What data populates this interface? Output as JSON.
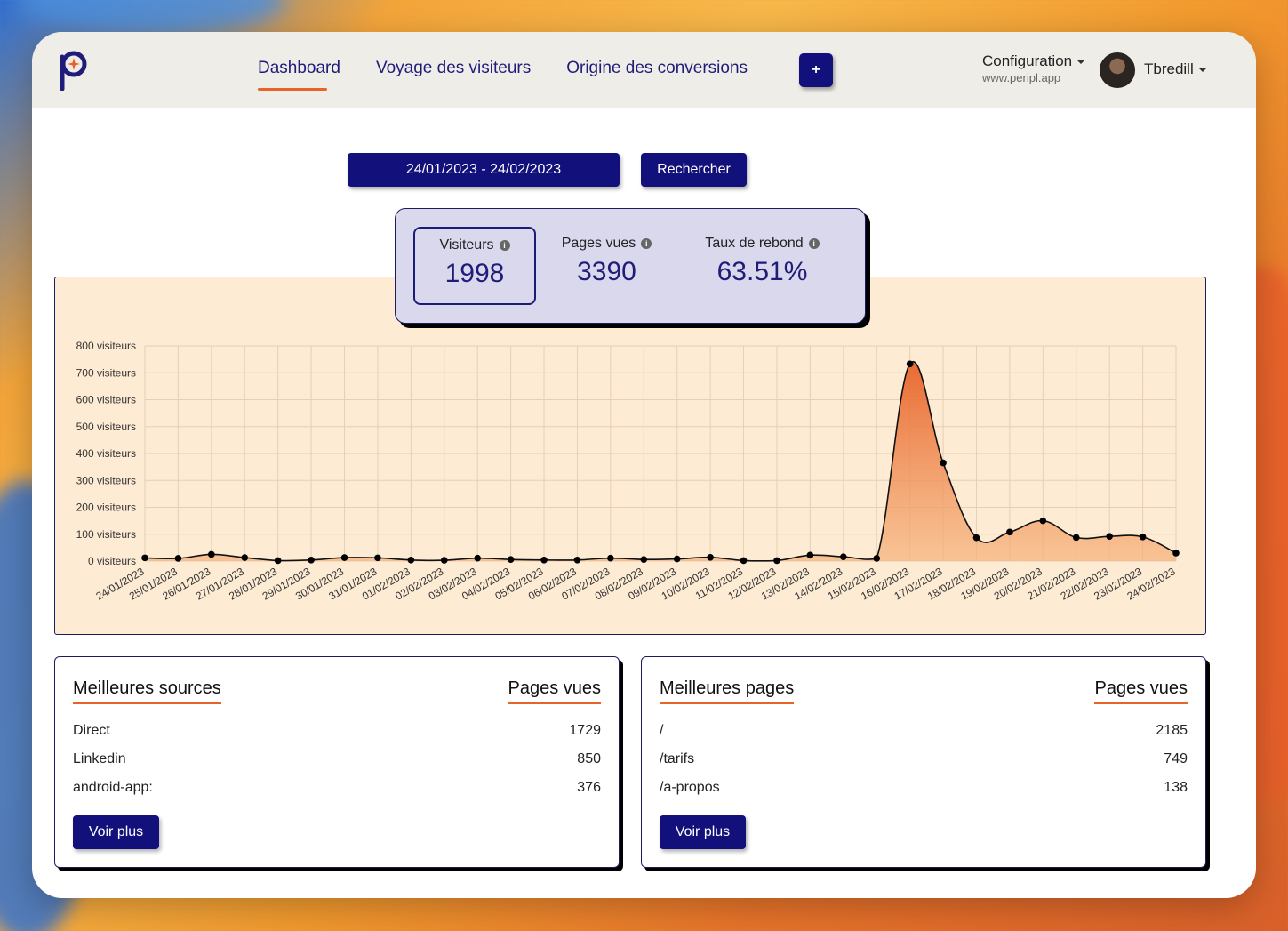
{
  "colors": {
    "primary": "#12107a",
    "accent": "#e8632a",
    "chart_bg": "#fdebd4",
    "stats_bg": "#d9d8ec"
  },
  "header": {
    "logo_icon": "periplus-logo-icon",
    "nav": [
      {
        "label": "Dashboard",
        "active": true
      },
      {
        "label": "Voyage des visiteurs",
        "active": false
      },
      {
        "label": "Origine des conversions",
        "active": false
      }
    ],
    "add_label": "+",
    "config_title": "Configuration",
    "config_site": "www.peripl.app",
    "user_name": "Tbredill"
  },
  "filters": {
    "date_range": "24/01/2023 - 24/02/2023",
    "search_label": "Rechercher"
  },
  "stats": {
    "visitors_label": "Visiteurs",
    "visitors_value": "1998",
    "pageviews_label": "Pages vues",
    "pageviews_value": "3390",
    "bounce_label": "Taux de rebond",
    "bounce_value": "63.51%"
  },
  "chart_data": {
    "type": "area",
    "y_unit_suffix": " visiteurs",
    "ylim": [
      0,
      800
    ],
    "yticks": [
      0,
      100,
      200,
      300,
      400,
      500,
      600,
      700,
      800
    ],
    "grid": true,
    "series": [
      {
        "x": [
          "24/01/2023",
          "25/01/2023",
          "26/01/2023",
          "27/01/2023",
          "28/01/2023",
          "29/01/2023",
          "30/01/2023",
          "31/01/2023",
          "01/02/2023",
          "02/02/2023",
          "03/02/2023",
          "04/02/2023",
          "05/02/2023",
          "06/02/2023",
          "07/02/2023",
          "08/02/2023",
          "09/02/2023",
          "10/02/2023",
          "11/02/2023",
          "12/02/2023",
          "13/02/2023",
          "14/02/2023",
          "15/02/2023",
          "16/02/2023",
          "17/02/2023",
          "18/02/2023",
          "19/02/2023",
          "20/02/2023",
          "21/02/2023",
          "22/02/2023",
          "23/02/2023",
          "24/02/2023"
        ],
        "values": [
          12,
          10,
          25,
          13,
          2,
          4,
          13,
          12,
          4,
          3,
          11,
          6,
          4,
          4,
          11,
          6,
          8,
          14,
          2,
          2,
          22,
          16,
          10,
          733,
          365,
          87,
          108,
          150,
          88,
          92,
          90,
          30
        ]
      }
    ]
  },
  "sources": {
    "title": "Meilleures sources",
    "column": "Pages vues",
    "rows": [
      {
        "name": "Direct",
        "value": "1729"
      },
      {
        "name": "Linkedin",
        "value": "850"
      },
      {
        "name": "android-app:",
        "value": "376"
      }
    ],
    "more_label": "Voir plus"
  },
  "pages": {
    "title": "Meilleures pages",
    "column": "Pages vues",
    "rows": [
      {
        "name": "/",
        "value": "2185"
      },
      {
        "name": "/tarifs",
        "value": "749"
      },
      {
        "name": "/a-propos",
        "value": "138"
      }
    ],
    "more_label": "Voir plus"
  }
}
